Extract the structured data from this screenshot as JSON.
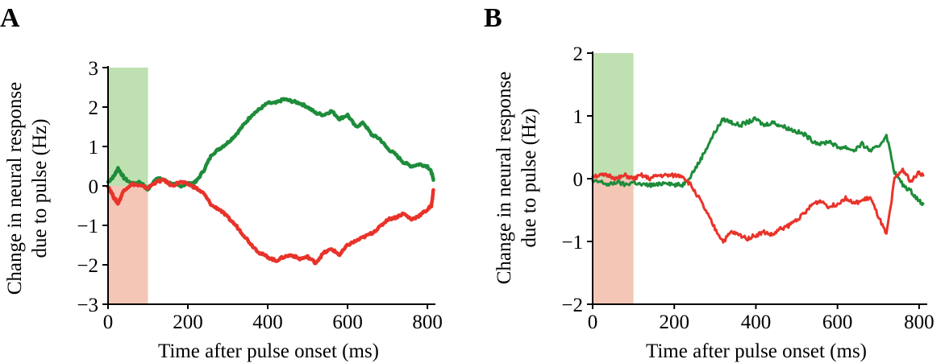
{
  "chart_data": [
    {
      "panel": "A",
      "type": "line",
      "xlabel": "Time after pulse onset (ms)",
      "ylabel": [
        "Change in neural response",
        "due to pulse (Hz)"
      ],
      "xlim": [
        0,
        820
      ],
      "ylim": [
        -3,
        3
      ],
      "xticks": [
        0,
        200,
        400,
        600,
        800
      ],
      "yticks": [
        3,
        2,
        1,
        0,
        -1,
        -2,
        -3
      ],
      "pulse_window_ms": [
        0,
        100
      ],
      "shading": [
        {
          "name": "green pulse",
          "color": "#bfe0b0",
          "y0": 0,
          "y1": 3
        },
        {
          "name": "red pulse",
          "color": "#f4c6b6",
          "y0": -3,
          "y1": 0
        }
      ],
      "series": [
        {
          "name": "green",
          "color": "#1e8c3a",
          "x": [
            0,
            15,
            25,
            40,
            60,
            80,
            100,
            120,
            140,
            160,
            180,
            200,
            220,
            240,
            260,
            280,
            300,
            320,
            340,
            360,
            380,
            400,
            420,
            440,
            460,
            480,
            500,
            520,
            540,
            560,
            580,
            600,
            620,
            640,
            660,
            680,
            700,
            720,
            740,
            760,
            780,
            800,
            810,
            815
          ],
          "values": [
            0.1,
            0.25,
            0.45,
            0.2,
            0.05,
            0.1,
            -0.1,
            0.2,
            0.15,
            0.05,
            0.0,
            0.05,
            0.1,
            0.4,
            0.8,
            0.95,
            1.1,
            1.3,
            1.55,
            1.8,
            1.95,
            2.1,
            2.1,
            2.2,
            2.15,
            2.1,
            2.0,
            1.85,
            1.8,
            1.9,
            1.7,
            1.8,
            1.5,
            1.6,
            1.3,
            1.2,
            0.95,
            0.8,
            0.6,
            0.5,
            0.55,
            0.5,
            0.35,
            0.15
          ]
        },
        {
          "name": "red",
          "color": "#e8332a",
          "x": [
            0,
            15,
            25,
            40,
            60,
            80,
            100,
            120,
            140,
            160,
            180,
            200,
            220,
            240,
            260,
            280,
            300,
            320,
            340,
            360,
            380,
            400,
            420,
            440,
            460,
            480,
            500,
            520,
            540,
            560,
            580,
            600,
            620,
            640,
            660,
            680,
            700,
            720,
            740,
            760,
            780,
            800,
            810,
            815
          ],
          "values": [
            0.0,
            -0.3,
            -0.45,
            -0.1,
            0.05,
            0.0,
            -0.05,
            0.1,
            0.15,
            0.0,
            0.1,
            0.05,
            -0.05,
            -0.2,
            -0.5,
            -0.6,
            -0.8,
            -1.0,
            -1.25,
            -1.5,
            -1.7,
            -1.8,
            -1.9,
            -1.8,
            -1.75,
            -1.85,
            -1.8,
            -1.95,
            -1.7,
            -1.6,
            -1.75,
            -1.5,
            -1.4,
            -1.3,
            -1.2,
            -1.05,
            -0.85,
            -0.8,
            -0.7,
            -0.85,
            -0.75,
            -0.6,
            -0.5,
            -0.1
          ]
        }
      ]
    },
    {
      "panel": "B",
      "type": "line",
      "xlabel": "Time after pulse onset (ms)",
      "ylabel": [
        "Change in neural response",
        "due to pulse (Hz)"
      ],
      "xlim": [
        0,
        820
      ],
      "ylim": [
        -2,
        2
      ],
      "xticks": [
        0,
        200,
        400,
        600,
        800
      ],
      "yticks": [
        2,
        1,
        0,
        -1,
        -2
      ],
      "pulse_window_ms": [
        0,
        100
      ],
      "shading": [
        {
          "name": "green pulse",
          "color": "#bfe0b0",
          "y0": 0,
          "y1": 2
        },
        {
          "name": "red pulse",
          "color": "#f4c6b6",
          "y0": -2,
          "y1": 0
        }
      ],
      "series": [
        {
          "name": "green",
          "color": "#1e8c3a",
          "x": [
            0,
            20,
            40,
            60,
            80,
            100,
            120,
            140,
            160,
            180,
            200,
            220,
            240,
            260,
            280,
            300,
            320,
            340,
            360,
            380,
            400,
            420,
            440,
            460,
            480,
            500,
            520,
            540,
            560,
            580,
            600,
            620,
            640,
            660,
            680,
            700,
            720,
            740,
            760,
            780,
            800,
            810
          ],
          "values": [
            -0.05,
            -0.05,
            -0.1,
            -0.05,
            -0.1,
            -0.05,
            -0.1,
            -0.1,
            -0.1,
            -0.05,
            -0.1,
            -0.1,
            0.05,
            0.25,
            0.5,
            0.75,
            0.95,
            0.9,
            0.85,
            0.9,
            0.95,
            0.85,
            0.9,
            0.85,
            0.8,
            0.75,
            0.7,
            0.6,
            0.55,
            0.6,
            0.5,
            0.5,
            0.45,
            0.55,
            0.45,
            0.5,
            0.7,
            0.1,
            -0.1,
            -0.2,
            -0.35,
            -0.4
          ]
        },
        {
          "name": "red",
          "color": "#e8332a",
          "x": [
            0,
            20,
            40,
            60,
            80,
            100,
            120,
            140,
            160,
            180,
            200,
            220,
            240,
            260,
            280,
            300,
            320,
            340,
            360,
            380,
            400,
            420,
            440,
            460,
            480,
            500,
            520,
            540,
            560,
            580,
            600,
            620,
            640,
            660,
            680,
            700,
            720,
            740,
            760,
            780,
            800,
            810
          ],
          "values": [
            0.05,
            0.05,
            0.05,
            0.0,
            0.05,
            0.0,
            0.05,
            0.0,
            0.05,
            0.05,
            0.05,
            0.05,
            -0.1,
            -0.3,
            -0.55,
            -0.8,
            -1.0,
            -0.85,
            -0.9,
            -0.95,
            -0.9,
            -0.85,
            -0.9,
            -0.8,
            -0.75,
            -0.65,
            -0.55,
            -0.4,
            -0.35,
            -0.45,
            -0.4,
            -0.3,
            -0.4,
            -0.35,
            -0.3,
            -0.6,
            -0.9,
            0.0,
            0.15,
            -0.05,
            0.1,
            0.05
          ]
        }
      ]
    }
  ]
}
